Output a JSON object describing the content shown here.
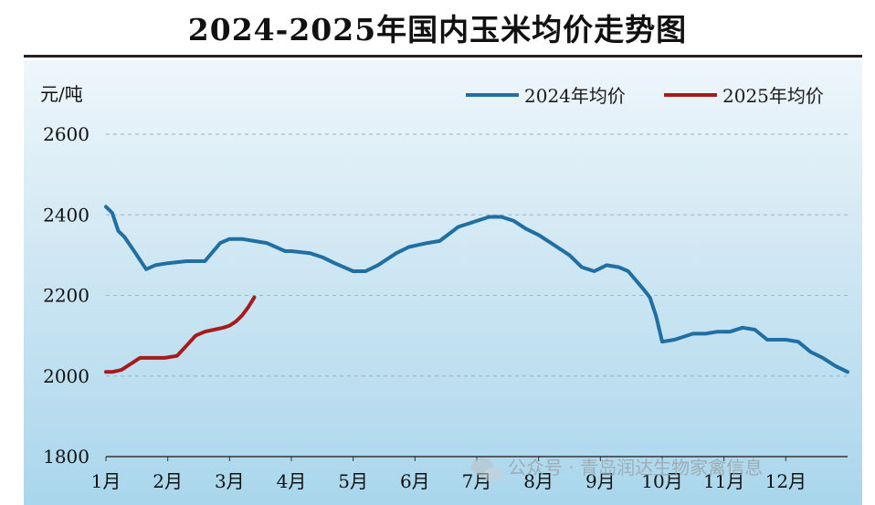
{
  "title": "2024-2025年国内玉米均价走势图",
  "watermark": "公众号 · 青岛润达生物家禽信息",
  "chart_data": {
    "type": "line",
    "ylabel": "元/吨",
    "ylim": [
      1800,
      2600
    ],
    "yticks": [
      1800,
      2000,
      2200,
      2400,
      2600
    ],
    "xlim": [
      1,
      13
    ],
    "months": [
      "1月",
      "2月",
      "3月",
      "4月",
      "5月",
      "6月",
      "7月",
      "8月",
      "9月",
      "10月",
      "11月",
      "12月"
    ],
    "grid": "horizontal-dashed",
    "legend_position": "top-right",
    "series": [
      {
        "name": "2024年均价",
        "color": "#1f6fa3",
        "x": [
          1.0,
          1.1,
          1.2,
          1.3,
          1.5,
          1.65,
          1.8,
          2.0,
          2.3,
          2.6,
          2.85,
          3.0,
          3.2,
          3.6,
          3.9,
          4.0,
          4.3,
          4.5,
          4.7,
          5.0,
          5.2,
          5.4,
          5.7,
          5.9,
          6.2,
          6.4,
          6.7,
          6.9,
          7.2,
          7.4,
          7.6,
          7.8,
          8.0,
          8.2,
          8.5,
          8.7,
          8.9,
          9.1,
          9.3,
          9.45,
          9.7,
          9.8,
          9.9,
          10.0,
          10.2,
          10.5,
          10.7,
          10.9,
          11.1,
          11.3,
          11.5,
          11.7,
          12.0,
          12.2,
          12.4,
          12.6,
          12.8,
          13.0
        ],
        "y": [
          2420,
          2405,
          2360,
          2345,
          2300,
          2265,
          2275,
          2280,
          2285,
          2285,
          2330,
          2340,
          2340,
          2330,
          2310,
          2310,
          2305,
          2295,
          2280,
          2260,
          2260,
          2275,
          2305,
          2320,
          2330,
          2335,
          2370,
          2380,
          2395,
          2395,
          2385,
          2365,
          2350,
          2330,
          2300,
          2270,
          2260,
          2275,
          2270,
          2260,
          2215,
          2195,
          2150,
          2085,
          2090,
          2105,
          2105,
          2110,
          2110,
          2120,
          2115,
          2090,
          2090,
          2085,
          2060,
          2045,
          2025,
          2010
        ]
      },
      {
        "name": "2025年均价",
        "color": "#a61c1c",
        "x": [
          1.0,
          1.1,
          1.25,
          1.4,
          1.55,
          1.75,
          1.95,
          2.15,
          2.3,
          2.45,
          2.6,
          2.75,
          2.9,
          3.0,
          3.1,
          3.2,
          3.3,
          3.4
        ],
        "y": [
          2010,
          2010,
          2015,
          2030,
          2045,
          2045,
          2045,
          2050,
          2075,
          2100,
          2110,
          2115,
          2120,
          2125,
          2135,
          2150,
          2170,
          2195
        ]
      }
    ]
  }
}
